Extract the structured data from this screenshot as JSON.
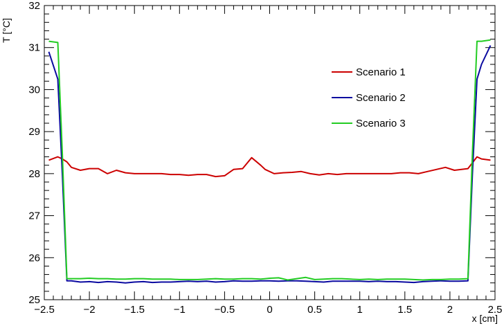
{
  "chart_data": {
    "type": "line",
    "title": "",
    "xlabel": "x [cm]",
    "ylabel": "T [°C]",
    "xlim": [
      -2.5,
      2.5
    ],
    "ylim": [
      25,
      32
    ],
    "xticks": [
      -2.5,
      -2,
      -1.5,
      -1,
      -0.5,
      0,
      0.5,
      1,
      1.5,
      2,
      2.5
    ],
    "xtick_labels": [
      "−2.5",
      "−2",
      "−1.5",
      "−1",
      "−0.5",
      "0",
      "0.5",
      "1",
      "1.5",
      "2",
      "2.5"
    ],
    "yticks": [
      25,
      26,
      27,
      28,
      29,
      30,
      31,
      32
    ],
    "ytick_labels": [
      "25",
      "26",
      "27",
      "28",
      "29",
      "30",
      "31",
      "32"
    ],
    "grid": false,
    "legend_position": "top-right",
    "series": [
      {
        "name": "Scenario 1",
        "color": "#cc0000",
        "x": [
          -2.45,
          -2.35,
          -2.3,
          -2.25,
          -2.2,
          -2.1,
          -2.0,
          -1.9,
          -1.8,
          -1.7,
          -1.6,
          -1.5,
          -1.4,
          -1.3,
          -1.2,
          -1.1,
          -1.0,
          -0.9,
          -0.8,
          -0.7,
          -0.6,
          -0.5,
          -0.4,
          -0.3,
          -0.2,
          -0.1,
          -0.05,
          0.05,
          0.15,
          0.25,
          0.35,
          0.45,
          0.55,
          0.65,
          0.75,
          0.85,
          0.95,
          1.05,
          1.15,
          1.25,
          1.35,
          1.45,
          1.55,
          1.65,
          1.75,
          1.85,
          1.95,
          2.05,
          2.2,
          2.3,
          2.35,
          2.45
        ],
        "y": [
          28.32,
          28.4,
          28.35,
          28.28,
          28.15,
          28.08,
          28.12,
          28.12,
          28.0,
          28.08,
          28.02,
          28.0,
          28.0,
          28.0,
          28.0,
          27.98,
          27.98,
          27.96,
          27.98,
          27.98,
          27.93,
          27.95,
          28.1,
          28.12,
          28.38,
          28.2,
          28.1,
          28.0,
          28.02,
          28.03,
          28.05,
          28.0,
          27.97,
          28.0,
          27.98,
          28.0,
          28.0,
          28.0,
          28.0,
          28.0,
          28.0,
          28.02,
          28.02,
          28.0,
          28.05,
          28.1,
          28.15,
          28.08,
          28.12,
          28.4,
          28.35,
          28.32
        ]
      },
      {
        "name": "Scenario 2",
        "color": "#0a0aa0",
        "x": [
          -2.45,
          -2.35,
          -2.3,
          -2.25,
          -2.2,
          -2.1,
          -2.0,
          -1.9,
          -1.8,
          -1.7,
          -1.6,
          -1.5,
          -1.4,
          -1.3,
          -1.2,
          -1.1,
          -1.0,
          -0.9,
          -0.8,
          -0.7,
          -0.6,
          -0.5,
          -0.4,
          -0.3,
          -0.2,
          -0.1,
          0.0,
          0.1,
          0.2,
          0.3,
          0.4,
          0.5,
          0.6,
          0.7,
          0.8,
          0.9,
          1.0,
          1.1,
          1.2,
          1.3,
          1.4,
          1.5,
          1.6,
          1.7,
          1.8,
          1.9,
          2.0,
          2.1,
          2.2,
          2.25,
          2.3,
          2.35,
          2.45
        ],
        "y": [
          30.9,
          30.25,
          28.0,
          25.45,
          25.45,
          25.42,
          25.43,
          25.41,
          25.43,
          25.42,
          25.4,
          25.42,
          25.43,
          25.41,
          25.42,
          25.42,
          25.43,
          25.44,
          25.43,
          25.44,
          25.42,
          25.43,
          25.45,
          25.44,
          25.44,
          25.45,
          25.45,
          25.44,
          25.45,
          25.45,
          25.44,
          25.43,
          25.42,
          25.44,
          25.44,
          25.44,
          25.44,
          25.43,
          25.44,
          25.43,
          25.43,
          25.42,
          25.41,
          25.43,
          25.44,
          25.45,
          25.44,
          25.44,
          25.45,
          28.0,
          30.25,
          30.6,
          31.05
        ]
      },
      {
        "name": "Scenario 3",
        "color": "#22cc22",
        "x": [
          -2.45,
          -2.35,
          -2.3,
          -2.25,
          -2.2,
          -2.1,
          -2.0,
          -1.9,
          -1.8,
          -1.7,
          -1.6,
          -1.5,
          -1.4,
          -1.3,
          -1.2,
          -1.1,
          -1.0,
          -0.9,
          -0.8,
          -0.7,
          -0.6,
          -0.5,
          -0.4,
          -0.3,
          -0.2,
          -0.1,
          0.0,
          0.1,
          0.2,
          0.3,
          0.4,
          0.5,
          0.6,
          0.7,
          0.8,
          0.9,
          1.0,
          1.1,
          1.2,
          1.3,
          1.4,
          1.5,
          1.6,
          1.7,
          1.8,
          1.9,
          2.0,
          2.1,
          2.2,
          2.25,
          2.3,
          2.35,
          2.45
        ],
        "y": [
          31.15,
          31.12,
          28.5,
          25.5,
          25.5,
          25.5,
          25.51,
          25.5,
          25.5,
          25.49,
          25.49,
          25.5,
          25.5,
          25.49,
          25.49,
          25.49,
          25.48,
          25.48,
          25.48,
          25.49,
          25.5,
          25.49,
          25.49,
          25.5,
          25.5,
          25.49,
          25.51,
          25.52,
          25.47,
          25.5,
          25.53,
          25.48,
          25.49,
          25.5,
          25.5,
          25.49,
          25.48,
          25.49,
          25.48,
          25.49,
          25.49,
          25.49,
          25.48,
          25.47,
          25.48,
          25.48,
          25.49,
          25.49,
          25.5,
          28.5,
          31.15,
          31.15,
          31.18
        ]
      }
    ]
  }
}
